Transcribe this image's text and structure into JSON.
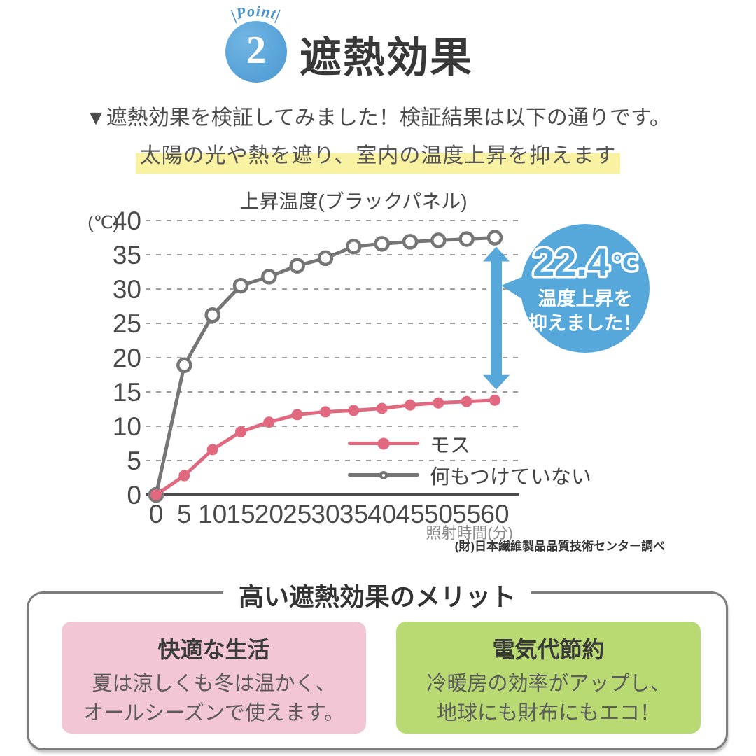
{
  "point_badge": {
    "label": "|Point|",
    "number": "2"
  },
  "page_title": "遮熱効果",
  "intro": "▼遮熱効果を検証してみました！検証結果は以下の通りです。",
  "highlight": "太陽の光や熱を遮り、室内の温度上昇を抑えます",
  "chart_data": {
    "type": "line",
    "title": "上昇温度(ブラックパネル)",
    "xlabel": "照射時間(分)",
    "y_unit": "(℃)",
    "x": [
      0,
      5,
      10,
      15,
      20,
      25,
      30,
      35,
      40,
      45,
      50,
      55,
      60
    ],
    "ylim": [
      0,
      40
    ],
    "ytick_step": 5,
    "grid": true,
    "legend_position": "inside-bottom-right",
    "series": [
      {
        "name": "モス",
        "color": "#e0697f",
        "marker": "filled-circle",
        "values": [
          0,
          2.8,
          6.6,
          9.2,
          10.6,
          11.7,
          12.1,
          12.3,
          12.6,
          13.1,
          13.4,
          13.6,
          13.8
        ]
      },
      {
        "name": "何もつけていない",
        "color": "#757575",
        "marker": "open-circle",
        "values": [
          0,
          18.9,
          26.2,
          30.5,
          31.8,
          33.4,
          34.5,
          36.2,
          36.6,
          36.9,
          37.1,
          37.3,
          37.5
        ]
      }
    ],
    "annotation": {
      "value": "22.4",
      "unit": "℃",
      "text_lines": [
        "温度上昇を",
        "抑えました！"
      ],
      "color": "#56a8da"
    },
    "source": "(財)日本繊維製品品質技術センター調べ"
  },
  "merits": {
    "title": "高い遮熱効果のメリット",
    "cards": [
      {
        "title": "快適な生活",
        "lines": [
          "夏は涼しくも冬は温かく、",
          "オールシーズンで使えます。"
        ],
        "bg": "#f3c6d5"
      },
      {
        "title": "電気代節約",
        "lines": [
          "冷暖房の効率がアップし、",
          "地球にも財布にもエコ！"
        ],
        "bg": "#b9da72"
      }
    ]
  },
  "colors": {
    "badge_blue": "#5aa5da",
    "accent_blue": "#56a8da",
    "highlight_yellow": "#f9f2a3",
    "moss_pink": "#e0697f",
    "neutral_gray": "#757575"
  }
}
